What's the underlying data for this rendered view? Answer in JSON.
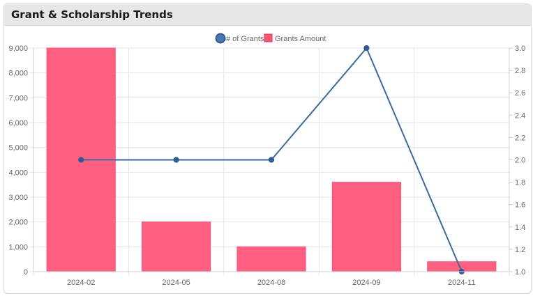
{
  "card": {
    "title": "Grant & Scholarship Trends"
  },
  "chart_data": {
    "type": "bar",
    "categories": [
      "2024-02",
      "2024-05",
      "2024-08",
      "2024-09",
      "2024-11"
    ],
    "series": [
      {
        "name": "# of Grants",
        "type": "line",
        "axis": "right",
        "values": [
          2,
          2,
          2,
          3,
          1
        ],
        "color": "#3b6aa0"
      },
      {
        "name": "Grants Amount",
        "type": "bar",
        "axis": "left",
        "values": [
          9000,
          2000,
          1000,
          3600,
          400
        ],
        "color": "#ff5277"
      }
    ],
    "y_left": {
      "min": 0,
      "max": 9000,
      "step": 1000
    },
    "y_right": {
      "min": 1.0,
      "max": 3.0,
      "step": 0.2
    },
    "left_ticks": [
      "0",
      "1,000",
      "2,000",
      "3,000",
      "4,000",
      "5,000",
      "6,000",
      "7,000",
      "8,000",
      "9,000"
    ],
    "right_ticks": [
      "1.0",
      "1.2",
      "1.4",
      "1.6",
      "1.8",
      "2.0",
      "2.2",
      "2.4",
      "2.6",
      "2.8",
      "3.0"
    ],
    "legend_position": "top",
    "grid": true
  }
}
